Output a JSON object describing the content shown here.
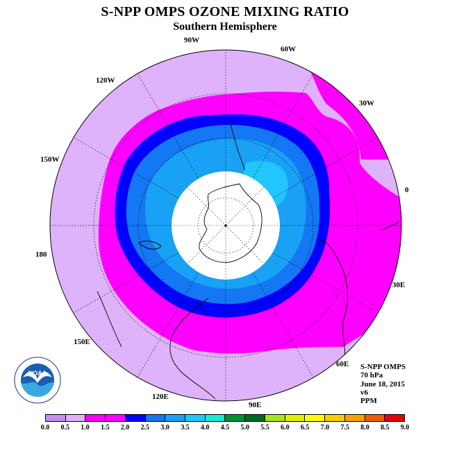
{
  "title": "S-NPP OMPS OZONE MIXING RATIO",
  "subtitle": "Southern Hemisphere",
  "longitude_labels": [
    "90W",
    "60W",
    "30W",
    "0",
    "30E",
    "60E",
    "90E",
    "120E",
    "150E",
    "180",
    "150W",
    "120W"
  ],
  "info": {
    "satellite": "S-NPP OMPS",
    "level": "70 hPa",
    "date": "June 18, 2015",
    "version": "v6",
    "units": "PPM"
  },
  "colorbar": {
    "ticks": [
      "0.0",
      "0.5",
      "1.0",
      "1.5",
      "2.0",
      "2.5",
      "3.0",
      "3.5",
      "4.0",
      "4.5",
      "5.0",
      "5.5",
      "6.0",
      "6.5",
      "7.0",
      "7.5",
      "8.0",
      "8.5",
      "9.0"
    ],
    "colors": [
      "#c08ef0",
      "#dfb3fc",
      "#ff00ff",
      "#ff00ff",
      "#0000ff",
      "#1477f3",
      "#19a1f6",
      "#22c6ff",
      "#11ead6",
      "#009036",
      "#006a1e",
      "#a6e619",
      "#dcf000",
      "#fffc00",
      "#fbca00",
      "#f7a100",
      "#f45b00",
      "#e70000",
      "#7d5532"
    ]
  },
  "logo": {
    "text": "NOAA",
    "icon": "noaa-logo-icon"
  },
  "legend_colors": {
    "low": "#dfb3fc",
    "magenta": "#ff00ff",
    "blue": "#0000ff",
    "mid_blue": "#1477f3",
    "light_blue": "#19a1f6",
    "cyan": "#22c6ff"
  }
}
